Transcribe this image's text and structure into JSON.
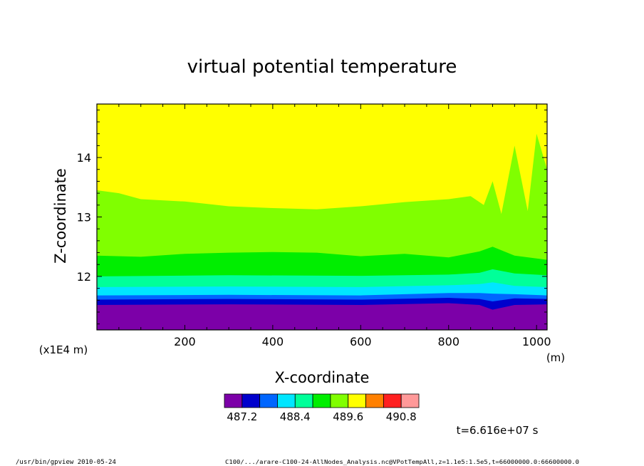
{
  "chart_data": {
    "type": "heatmap",
    "subtype": "filled-contour",
    "title": "virtual potential temperature",
    "xlabel": "X-coordinate",
    "xunit": "(m)",
    "ylabel": "Z-coordinate",
    "yunit": "(x1E4 m)",
    "xlim": [
      0,
      1024
    ],
    "ylim": [
      11.1,
      14.9
    ],
    "xticks": [
      200,
      400,
      600,
      800,
      1000
    ],
    "xtick_labels": [
      "200",
      "400",
      "600",
      "800",
      "1000"
    ],
    "yticks": [
      12,
      13,
      14
    ],
    "ytick_labels": [
      "12",
      "13",
      "14"
    ],
    "levels_colors": [
      "#7c00a8",
      "#0000cc",
      "#0066ff",
      "#00e6ff",
      "#00ff99",
      "#00ee00",
      "#80ff00",
      "#ffff00",
      "#ff8000",
      "#ff2020",
      "#ff9999"
    ],
    "colorbar_labels": [
      "487.2",
      "488.4",
      "489.6",
      "490.8"
    ],
    "contour_boundaries_z": [
      {
        "level": "purple/blue",
        "x": [
          0,
          300,
          600,
          800,
          870,
          900,
          950,
          1024
        ],
        "z": [
          11.52,
          11.53,
          11.52,
          11.55,
          11.52,
          11.44,
          11.52,
          11.53
        ]
      },
      {
        "level": "blue/mid-blue",
        "x": [
          0,
          300,
          600,
          800,
          870,
          900,
          950,
          1024
        ],
        "z": [
          11.61,
          11.62,
          11.61,
          11.64,
          11.62,
          11.58,
          11.63,
          11.62
        ]
      },
      {
        "level": "mid-blue/cyan",
        "x": [
          0,
          300,
          600,
          800,
          870,
          900,
          950,
          1024
        ],
        "z": [
          11.68,
          11.69,
          11.68,
          11.72,
          11.72,
          11.71,
          11.7,
          11.68
        ]
      },
      {
        "level": "cyan/spring",
        "x": [
          0,
          300,
          600,
          800,
          870,
          900,
          950,
          1024
        ],
        "z": [
          11.82,
          11.83,
          11.82,
          11.85,
          11.87,
          11.9,
          11.84,
          11.82
        ]
      },
      {
        "level": "spring/green",
        "x": [
          0,
          300,
          600,
          800,
          870,
          900,
          950,
          1024
        ],
        "z": [
          12.0,
          12.02,
          12.01,
          12.03,
          12.06,
          12.12,
          12.05,
          12.02
        ]
      },
      {
        "level": "green/lime",
        "x": [
          0,
          100,
          200,
          300,
          400,
          500,
          600,
          700,
          800,
          870,
          900,
          950,
          1024
        ],
        "z": [
          12.35,
          12.33,
          12.38,
          12.4,
          12.41,
          12.4,
          12.34,
          12.38,
          12.32,
          12.42,
          12.5,
          12.35,
          12.28
        ]
      },
      {
        "level": "lime/yellow",
        "x": [
          0,
          50,
          100,
          200,
          300,
          400,
          500,
          600,
          700,
          800,
          850,
          880,
          900,
          920,
          950,
          980,
          1000,
          1024
        ],
        "z": [
          13.45,
          13.4,
          13.3,
          13.26,
          13.18,
          13.15,
          13.13,
          13.18,
          13.25,
          13.3,
          13.35,
          13.2,
          13.6,
          13.05,
          14.2,
          13.1,
          14.4,
          13.8
        ]
      }
    ],
    "annotation": "t=6.616e+07 s",
    "footer_left": "/usr/bin/gpview  2010-05-24",
    "footer_right": "C100/.../arare-C100-24-AllNodes_Analysis.nc@VPotTempAll,z=1.1e5:1.5e5,t=66000000.0:66600000.0",
    "grid": false,
    "legend": "bottom"
  }
}
